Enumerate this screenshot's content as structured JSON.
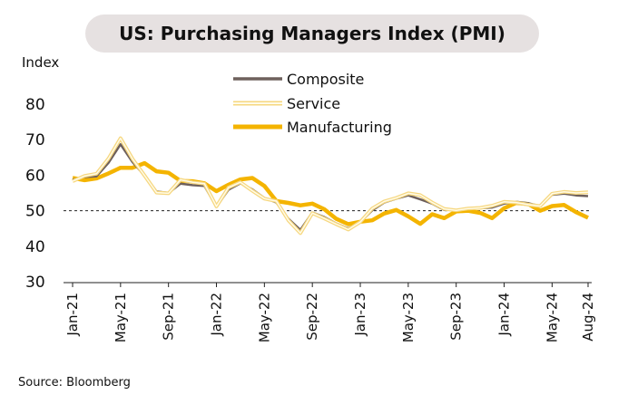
{
  "chart_data": {
    "type": "line",
    "title": "US: Purchasing Managers Index (PMI)",
    "ylabel": "Index",
    "ylim": [
      30,
      80
    ],
    "yticks": [
      30,
      40,
      50,
      60,
      70,
      80
    ],
    "reference_line": 50,
    "legend_position": "top-center",
    "source": "Source: Bloomberg",
    "x_tick_labels": [
      "Jan-21",
      "May-21",
      "Sep-21",
      "Jan-22",
      "May-22",
      "Sep-22",
      "Jan-23",
      "May-23",
      "Sep-23",
      "Jan-24",
      "May-24",
      "Aug-24"
    ],
    "x_tick_indices": [
      0,
      4,
      8,
      12,
      16,
      20,
      24,
      28,
      32,
      36,
      40,
      43
    ],
    "x": [
      "Jan-21",
      "Feb-21",
      "Mar-21",
      "Apr-21",
      "May-21",
      "Jun-21",
      "Jul-21",
      "Aug-21",
      "Sep-21",
      "Oct-21",
      "Nov-21",
      "Dec-21",
      "Jan-22",
      "Feb-22",
      "Mar-22",
      "Apr-22",
      "May-22",
      "Jun-22",
      "Jul-22",
      "Aug-22",
      "Sep-22",
      "Oct-22",
      "Nov-22",
      "Dec-22",
      "Jan-23",
      "Feb-23",
      "Mar-23",
      "Apr-23",
      "May-23",
      "Jun-23",
      "Jul-23",
      "Aug-23",
      "Sep-23",
      "Oct-23",
      "Nov-23",
      "Dec-23",
      "Jan-24",
      "Feb-24",
      "Mar-24",
      "Apr-24",
      "May-24",
      "Jun-24",
      "Jul-24",
      "Aug-24"
    ],
    "series": [
      {
        "name": "Composite",
        "color": "#6e605c",
        "values": [
          58.7,
          59.5,
          59.7,
          63.5,
          68.7,
          63.7,
          59.9,
          55.4,
          55.0,
          57.6,
          57.2,
          57.0,
          51.1,
          55.9,
          57.7,
          56.0,
          53.6,
          52.3,
          47.7,
          44.6,
          49.5,
          48.2,
          46.4,
          45.0,
          46.8,
          50.1,
          52.3,
          53.4,
          54.3,
          53.2,
          52.0,
          50.2,
          50.2,
          50.7,
          50.7,
          50.9,
          52.0,
          52.5,
          52.1,
          51.3,
          54.5,
          54.8,
          54.3,
          54.1
        ]
      },
      {
        "name": "Service",
        "color": "#f6d77f",
        "values": [
          58.3,
          59.8,
          60.4,
          64.7,
          70.4,
          64.6,
          59.9,
          55.1,
          54.9,
          58.7,
          58.0,
          57.6,
          51.2,
          56.5,
          58.0,
          55.6,
          53.4,
          52.7,
          47.3,
          43.7,
          49.3,
          47.8,
          46.2,
          44.7,
          46.8,
          50.6,
          52.6,
          53.6,
          54.9,
          54.4,
          52.3,
          50.5,
          50.1,
          50.6,
          50.8,
          51.4,
          52.5,
          52.3,
          51.7,
          51.3,
          54.8,
          55.3,
          55.0,
          55.2
        ]
      },
      {
        "name": "Manufacturing",
        "color": "#f4b400",
        "values": [
          59.2,
          58.6,
          59.1,
          60.5,
          62.1,
          62.1,
          63.4,
          61.1,
          60.7,
          58.4,
          58.3,
          57.7,
          55.5,
          57.3,
          58.8,
          59.2,
          57.0,
          52.7,
          52.2,
          51.5,
          52.0,
          50.4,
          47.7,
          46.2,
          46.9,
          47.3,
          49.2,
          50.2,
          48.4,
          46.3,
          49.0,
          47.9,
          49.8,
          50.0,
          49.4,
          47.9,
          50.7,
          52.2,
          51.9,
          50.0,
          51.3,
          51.6,
          49.6,
          48.0
        ]
      }
    ]
  }
}
